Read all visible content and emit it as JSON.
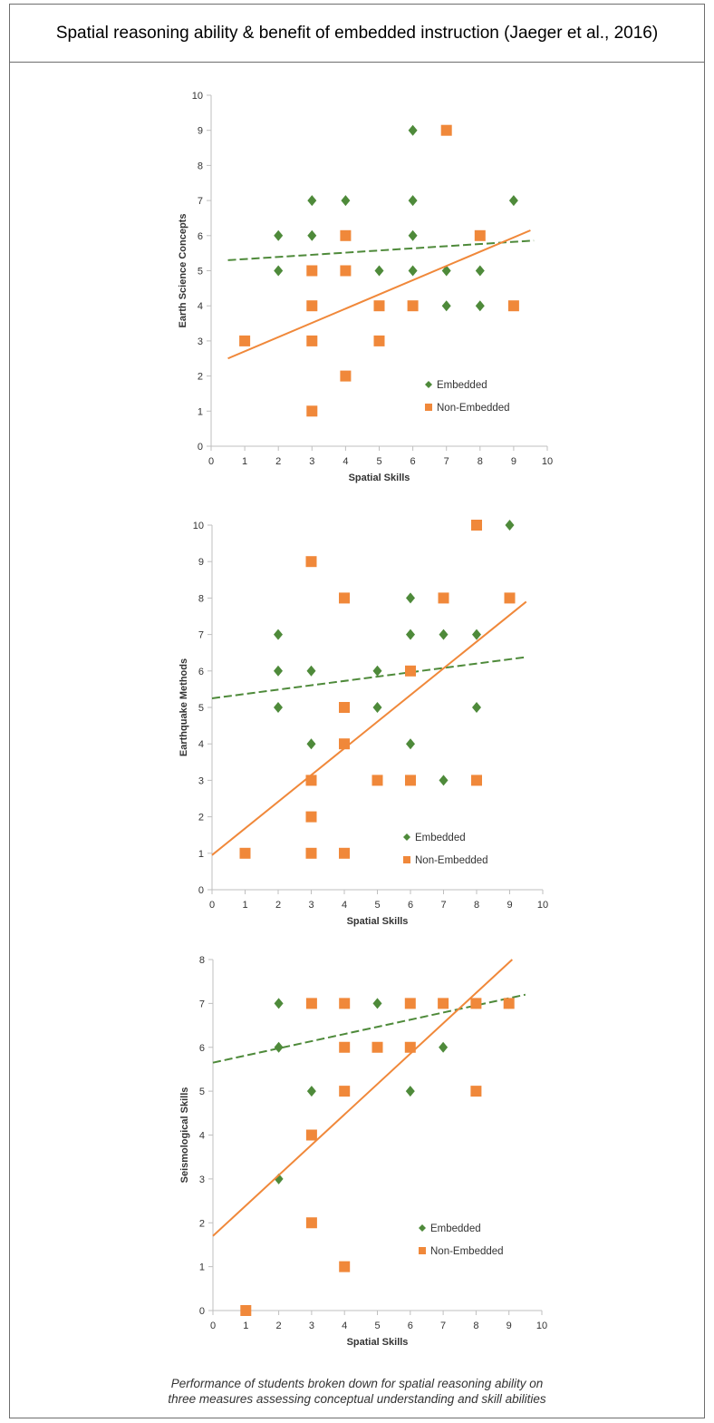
{
  "title": "Spatial reasoning ability & benefit of embedded instruction (Jaeger et al., 2016)",
  "caption": {
    "line1": "Performance of students broken down for spatial reasoning ability on",
    "line2": "three measures assessing conceptual understanding and skill abilities"
  },
  "colors": {
    "embedded": "#4e8a3a",
    "non_embedded": "#f0883a",
    "axis": "#bfbfbf",
    "text": "#333333"
  },
  "chart_data": [
    {
      "type": "scatter",
      "xlabel": "Spatial Skills",
      "ylabel": "Earth Science Concepts",
      "xlim": [
        0,
        10
      ],
      "ylim": [
        0,
        10
      ],
      "xticks": [
        "0",
        "1",
        "2",
        "3",
        "4",
        "5",
        "6",
        "7",
        "8",
        "9",
        "10"
      ],
      "yticks": [
        "0",
        "1",
        "2",
        "3",
        "4",
        "5",
        "6",
        "7",
        "8",
        "9",
        "10"
      ],
      "grid": false,
      "legend": "lower-right",
      "series": [
        {
          "name": "Embedded",
          "marker": "diamond",
          "points": [
            [
              2,
              6
            ],
            [
              2,
              5
            ],
            [
              3,
              7
            ],
            [
              3,
              6
            ],
            [
              4,
              7
            ],
            [
              4,
              5
            ],
            [
              5,
              5
            ],
            [
              6,
              9
            ],
            [
              6,
              7
            ],
            [
              6,
              6
            ],
            [
              6,
              5
            ],
            [
              7,
              5
            ],
            [
              7,
              4
            ],
            [
              8,
              5
            ],
            [
              8,
              4
            ],
            [
              9,
              7
            ]
          ],
          "trendline": [
            [
              0.5,
              5.3
            ],
            [
              9.6,
              5.86
            ]
          ]
        },
        {
          "name": "Non-Embedded",
          "marker": "square",
          "points": [
            [
              1,
              3
            ],
            [
              3,
              5
            ],
            [
              3,
              4
            ],
            [
              3,
              3
            ],
            [
              3,
              1
            ],
            [
              4,
              6
            ],
            [
              4,
              5
            ],
            [
              4,
              2
            ],
            [
              5,
              4
            ],
            [
              5,
              3
            ],
            [
              6,
              4
            ],
            [
              7,
              9
            ],
            [
              8,
              6
            ],
            [
              9,
              4
            ]
          ],
          "trendline": [
            [
              0.5,
              2.5
            ],
            [
              9.5,
              6.15
            ]
          ]
        }
      ]
    },
    {
      "type": "scatter",
      "xlabel": "Spatial Skills",
      "ylabel": "Earthquake Methods",
      "xlim": [
        0,
        10
      ],
      "ylim": [
        0,
        10
      ],
      "xticks": [
        "0",
        "1",
        "2",
        "3",
        "4",
        "5",
        "6",
        "7",
        "8",
        "9",
        "10"
      ],
      "yticks": [
        "0",
        "1",
        "2",
        "3",
        "4",
        "5",
        "6",
        "7",
        "8",
        "9",
        "10"
      ],
      "grid": false,
      "legend": "lower-right",
      "series": [
        {
          "name": "Embedded",
          "marker": "diamond",
          "points": [
            [
              2,
              7
            ],
            [
              2,
              6
            ],
            [
              2,
              5
            ],
            [
              3,
              6
            ],
            [
              3,
              4
            ],
            [
              5,
              6
            ],
            [
              5,
              5
            ],
            [
              6,
              8
            ],
            [
              6,
              7
            ],
            [
              6,
              4
            ],
            [
              7,
              7
            ],
            [
              7,
              3
            ],
            [
              8,
              7
            ],
            [
              8,
              5
            ],
            [
              9,
              10
            ]
          ],
          "trendline": [
            [
              0,
              5.25
            ],
            [
              9.5,
              6.38
            ]
          ]
        },
        {
          "name": "Non-Embedded",
          "marker": "square",
          "points": [
            [
              1,
              1
            ],
            [
              3,
              9
            ],
            [
              3,
              3
            ],
            [
              3,
              2
            ],
            [
              3,
              1
            ],
            [
              4,
              8
            ],
            [
              4,
              5
            ],
            [
              4,
              4
            ],
            [
              4,
              1
            ],
            [
              5,
              3
            ],
            [
              6,
              6
            ],
            [
              6,
              3
            ],
            [
              7,
              8
            ],
            [
              8,
              10
            ],
            [
              8,
              3
            ],
            [
              9,
              8
            ]
          ],
          "trendline": [
            [
              0,
              0.95
            ],
            [
              9.5,
              7.9
            ]
          ]
        }
      ]
    },
    {
      "type": "scatter",
      "xlabel": "Spatial Skills",
      "ylabel": "Seismological Skills",
      "xlim": [
        0,
        10
      ],
      "ylim": [
        0,
        8
      ],
      "xticks": [
        "0",
        "1",
        "2",
        "3",
        "4",
        "5",
        "6",
        "7",
        "8",
        "9",
        "10"
      ],
      "yticks": [
        "0",
        "1",
        "2",
        "3",
        "4",
        "5",
        "6",
        "7",
        "8"
      ],
      "grid": false,
      "legend": "lower-right",
      "series": [
        {
          "name": "Embedded",
          "marker": "diamond",
          "points": [
            [
              2,
              7
            ],
            [
              2,
              6
            ],
            [
              2,
              3
            ],
            [
              3,
              5
            ],
            [
              4,
              7
            ],
            [
              5,
              7
            ],
            [
              6,
              5
            ],
            [
              7,
              6
            ],
            [
              8,
              7
            ],
            [
              9,
              7
            ]
          ],
          "trendline": [
            [
              0,
              5.65
            ],
            [
              9.5,
              7.2
            ]
          ]
        },
        {
          "name": "Non-Embedded",
          "marker": "square",
          "points": [
            [
              1,
              0
            ],
            [
              3,
              7
            ],
            [
              3,
              4
            ],
            [
              3,
              2
            ],
            [
              4,
              7
            ],
            [
              4,
              6
            ],
            [
              4,
              5
            ],
            [
              4,
              1
            ],
            [
              5,
              6
            ],
            [
              6,
              7
            ],
            [
              6,
              6
            ],
            [
              7,
              7
            ],
            [
              8,
              7
            ],
            [
              8,
              5
            ],
            [
              9,
              7
            ]
          ],
          "trendline": [
            [
              0,
              1.7
            ],
            [
              9.1,
              8
            ]
          ]
        }
      ]
    }
  ]
}
